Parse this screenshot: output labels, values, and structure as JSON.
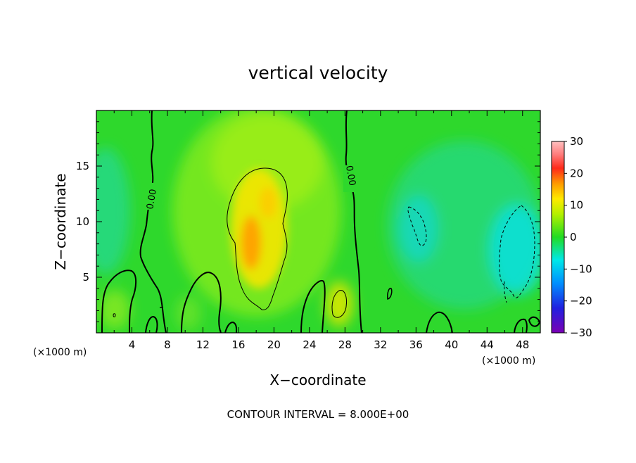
{
  "chart_data": {
    "type": "heatmap",
    "title": "vertical velocity",
    "xlabel": "X−coordinate",
    "ylabel": "Z−coordinate",
    "x_unit_label": "(×1000 m)",
    "xlim": [
      0,
      50
    ],
    "ylim": [
      0,
      20
    ],
    "x_ticks": [
      4,
      8,
      12,
      16,
      20,
      24,
      28,
      32,
      36,
      40,
      44,
      48
    ],
    "y_ticks": [
      5,
      10,
      15
    ],
    "colorbar": {
      "min": -30,
      "max": 30,
      "ticks": [
        {
          "value": 30,
          "label": "30"
        },
        {
          "value": 20,
          "label": "20"
        },
        {
          "value": 10,
          "label": "10"
        },
        {
          "value": 0,
          "label": "0"
        },
        {
          "value": -10,
          "label": "−10"
        },
        {
          "value": -20,
          "label": "−20"
        },
        {
          "value": -30,
          "label": "−30"
        }
      ]
    },
    "contour_interval_text": "CONTOUR INTERVAL = 8.000E+00",
    "contour_labels": [
      {
        "text": "0.00",
        "x": 6.4,
        "y": 12.5
      },
      {
        "text": "0.00",
        "x": 28.0,
        "y": 14.3
      }
    ],
    "features": [
      {
        "name": "updraft-core",
        "x": 17.5,
        "y": 8.2,
        "value": 14
      },
      {
        "name": "updraft-upper",
        "x": 19.0,
        "y": 11.5,
        "value": 9
      },
      {
        "name": "updraft-low-x27",
        "x": 27.2,
        "y": 2.8,
        "value": 8
      },
      {
        "name": "downdraft-x36",
        "x": 36.5,
        "y": 8.8,
        "value": -7
      },
      {
        "name": "downdraft-x47",
        "x": 47.0,
        "y": 7.5,
        "value": -10
      },
      {
        "name": "left-edge-minimum",
        "x": 0.8,
        "y": 10.5,
        "value": -4
      }
    ],
    "grid": false,
    "legend": "colorbar-right"
  },
  "colors": {
    "background": "#ffffff",
    "axis": "#000000",
    "field_zero": "#22dc22"
  }
}
